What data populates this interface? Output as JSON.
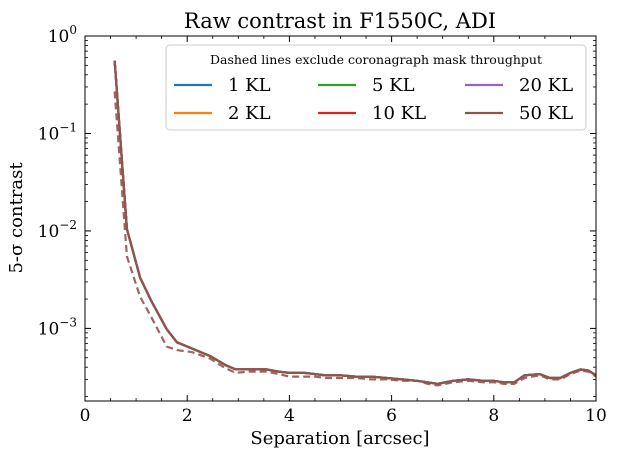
{
  "chart_data": {
    "type": "line",
    "title": "Raw contrast in F1550C, ADI",
    "xlabel": "Separation [arcsec]",
    "ylabel": "5-σ contrast",
    "xlim": [
      0,
      10
    ],
    "ylim": [
      0.00018,
      1
    ],
    "yscale": "log",
    "x_ticks": [
      0,
      2,
      4,
      6,
      8,
      10
    ],
    "x_tick_labels": [
      "0",
      "2",
      "4",
      "6",
      "8",
      "10"
    ],
    "y_ticks": [
      0.001,
      0.01,
      0.1,
      1
    ],
    "y_tick_labels": [
      {
        "base": "10",
        "exp": "−3"
      },
      {
        "base": "10",
        "exp": "−2"
      },
      {
        "base": "10",
        "exp": "−1"
      },
      {
        "base": "10",
        "exp": "0"
      }
    ],
    "legend": {
      "title": "Dashed lines exclude coronagraph mask throughput",
      "placement": "top-right",
      "columns": 3
    },
    "x": [
      0.58,
      0.82,
      1.08,
      1.3,
      1.6,
      1.8,
      2.1,
      2.45,
      2.75,
      2.95,
      3.2,
      3.55,
      3.8,
      4.0,
      4.3,
      4.5,
      4.7,
      5.0,
      5.3,
      5.6,
      5.9,
      6.2,
      6.5,
      6.7,
      6.9,
      7.2,
      7.5,
      7.8,
      8.0,
      8.2,
      8.4,
      8.6,
      8.9,
      9.1,
      9.3,
      9.5,
      9.7,
      9.85,
      10.0
    ],
    "series": [
      {
        "name": "1 KL",
        "color": "#1f77b4",
        "values": [
          0.56,
          0.0105,
          0.0033,
          0.0019,
          0.00098,
          0.00072,
          0.00062,
          0.00052,
          0.00042,
          0.00038,
          0.00038,
          0.00038,
          0.00036,
          0.00035,
          0.00035,
          0.00034,
          0.00033,
          0.00033,
          0.00032,
          0.00032,
          0.00031,
          0.0003,
          0.00029,
          0.00028,
          0.00027,
          0.00029,
          0.0003,
          0.00029,
          0.00029,
          0.00028,
          0.00028,
          0.00033,
          0.00034,
          0.00031,
          0.00031,
          0.00035,
          0.00038,
          0.00037,
          0.00033
        ]
      },
      {
        "name": "2 KL",
        "color": "#ff7f0e",
        "values": [
          0.56,
          0.0105,
          0.0033,
          0.0019,
          0.00098,
          0.00072,
          0.00062,
          0.00052,
          0.00042,
          0.00038,
          0.00038,
          0.00038,
          0.00036,
          0.00035,
          0.00035,
          0.00034,
          0.00033,
          0.00033,
          0.00032,
          0.00032,
          0.00031,
          0.0003,
          0.00029,
          0.00028,
          0.00027,
          0.00029,
          0.0003,
          0.00029,
          0.00029,
          0.00028,
          0.00028,
          0.00033,
          0.00034,
          0.00031,
          0.00031,
          0.00035,
          0.00038,
          0.00037,
          0.00033
        ]
      },
      {
        "name": "5 KL",
        "color": "#2ca02c",
        "values": [
          0.56,
          0.0105,
          0.0033,
          0.0019,
          0.00098,
          0.00072,
          0.00062,
          0.00052,
          0.00042,
          0.00038,
          0.00038,
          0.00038,
          0.00036,
          0.00035,
          0.00035,
          0.00034,
          0.00033,
          0.00033,
          0.00032,
          0.00032,
          0.00031,
          0.0003,
          0.00029,
          0.00028,
          0.00027,
          0.00029,
          0.0003,
          0.00029,
          0.00029,
          0.00028,
          0.00028,
          0.00033,
          0.00034,
          0.00031,
          0.00031,
          0.00035,
          0.00038,
          0.00037,
          0.00033
        ]
      },
      {
        "name": "10 KL",
        "color": "#d62728",
        "values": [
          0.56,
          0.0105,
          0.0033,
          0.0019,
          0.00098,
          0.00072,
          0.00062,
          0.00052,
          0.00042,
          0.00038,
          0.00038,
          0.00038,
          0.00036,
          0.00035,
          0.00035,
          0.00034,
          0.00033,
          0.00033,
          0.00032,
          0.00032,
          0.00031,
          0.0003,
          0.00029,
          0.00028,
          0.00027,
          0.00029,
          0.0003,
          0.00029,
          0.00029,
          0.00028,
          0.00028,
          0.00033,
          0.00034,
          0.00031,
          0.00031,
          0.00035,
          0.00038,
          0.00037,
          0.00033
        ]
      },
      {
        "name": "20 KL",
        "color": "#9467bd",
        "values": [
          0.56,
          0.0105,
          0.0033,
          0.0019,
          0.00098,
          0.00072,
          0.00062,
          0.00052,
          0.00042,
          0.00038,
          0.00038,
          0.00038,
          0.00036,
          0.00035,
          0.00035,
          0.00034,
          0.00033,
          0.00033,
          0.00032,
          0.00032,
          0.00031,
          0.0003,
          0.00029,
          0.00028,
          0.00027,
          0.00029,
          0.0003,
          0.00029,
          0.00029,
          0.00028,
          0.00028,
          0.00033,
          0.00034,
          0.00031,
          0.00031,
          0.00035,
          0.00038,
          0.00037,
          0.00033
        ]
      },
      {
        "name": "50 KL",
        "color": "#8c564b",
        "values": [
          0.56,
          0.0105,
          0.0033,
          0.0019,
          0.00098,
          0.00072,
          0.00062,
          0.00052,
          0.00042,
          0.00038,
          0.00038,
          0.00038,
          0.00036,
          0.00035,
          0.00035,
          0.00034,
          0.00033,
          0.00033,
          0.00032,
          0.00032,
          0.00031,
          0.0003,
          0.00029,
          0.00028,
          0.00027,
          0.00029,
          0.0003,
          0.00029,
          0.00029,
          0.00028,
          0.00028,
          0.00033,
          0.00034,
          0.00031,
          0.00031,
          0.00035,
          0.00038,
          0.00037,
          0.00033
        ]
      }
    ],
    "dashed_series": [
      {
        "color": "#a0655d",
        "values": [
          0.27,
          0.0055,
          0.0021,
          0.0013,
          0.00065,
          0.0006,
          0.00057,
          0.00049,
          0.00039,
          0.00035,
          0.00036,
          0.00036,
          0.00034,
          0.00032,
          0.00032,
          0.00032,
          0.00031,
          0.00031,
          0.00031,
          0.0003,
          0.0003,
          0.00029,
          0.00029,
          0.00027,
          0.00026,
          0.00028,
          0.00029,
          0.00028,
          0.00028,
          0.00027,
          0.00027,
          0.00031,
          0.00033,
          0.0003,
          0.0003,
          0.00034,
          0.00037,
          0.00036,
          0.00032
        ]
      }
    ]
  }
}
